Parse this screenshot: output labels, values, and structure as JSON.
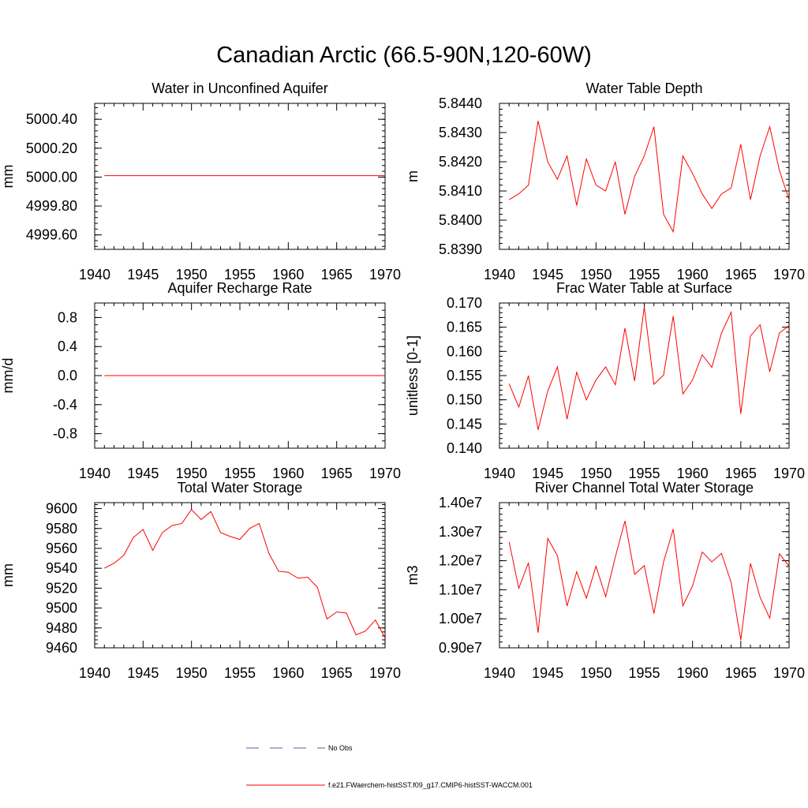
{
  "main_title": "Canadian Arctic (66.5-90N,120-60W)",
  "colors": {
    "model": "#ff0000",
    "obs": "#5a5aa8",
    "axis": "#000000"
  },
  "legend": {
    "obs_label": "No Obs",
    "model_label": "f.e21.FWaerchem-histSST.f09_g17.CMIP6-histSST-WACCM.001"
  },
  "chart_data": [
    {
      "type": "line",
      "title": "Water in Unconfined Aquifer",
      "ylabel": "mm",
      "xlim": [
        1940,
        1970
      ],
      "ylim": [
        4999.5,
        5000.51
      ],
      "xticks": [
        1940,
        1945,
        1950,
        1955,
        1960,
        1965,
        1970
      ],
      "yticks": [
        4999.6,
        4999.8,
        5000.0,
        5000.2,
        5000.4
      ],
      "ytick_labels": [
        "4999.60",
        "4999.80",
        "5000.00",
        "5000.20",
        "5000.40"
      ],
      "ytick_minor": 0.04,
      "series": [
        {
          "x": [
            1941,
            1942,
            1943,
            1944,
            1945,
            1946,
            1947,
            1948,
            1949,
            1950,
            1951,
            1952,
            1953,
            1954,
            1955,
            1956,
            1957,
            1958,
            1959,
            1960,
            1961,
            1962,
            1963,
            1964,
            1965,
            1966,
            1967,
            1968,
            1969,
            1970
          ],
          "y": [
            5000.01,
            5000.01,
            5000.01,
            5000.01,
            5000.01,
            5000.01,
            5000.01,
            5000.01,
            5000.01,
            5000.01,
            5000.01,
            5000.01,
            5000.01,
            5000.01,
            5000.01,
            5000.01,
            5000.01,
            5000.01,
            5000.01,
            5000.01,
            5000.01,
            5000.01,
            5000.01,
            5000.01,
            5000.01,
            5000.01,
            5000.01,
            5000.01,
            5000.01,
            5000.01
          ]
        }
      ]
    },
    {
      "type": "line",
      "title": "Water Table Depth",
      "ylabel": "m",
      "xlim": [
        1940,
        1970
      ],
      "ylim": [
        5.839,
        5.844
      ],
      "xticks": [
        1940,
        1945,
        1950,
        1955,
        1960,
        1965,
        1970
      ],
      "yticks": [
        5.839,
        5.84,
        5.841,
        5.842,
        5.843,
        5.844
      ],
      "ytick_labels": [
        "5.8390",
        "5.8400",
        "5.8410",
        "5.8420",
        "5.8430",
        "5.8440"
      ],
      "ytick_minor": 0.0002,
      "series": [
        {
          "x": [
            1941,
            1942,
            1943,
            1944,
            1945,
            1946,
            1947,
            1948,
            1949,
            1950,
            1951,
            1952,
            1953,
            1954,
            1955,
            1956,
            1957,
            1958,
            1959,
            1960,
            1961,
            1962,
            1963,
            1964,
            1965,
            1966,
            1967,
            1968,
            1969,
            1970
          ],
          "y": [
            5.8407,
            5.8409,
            5.8412,
            5.8434,
            5.842,
            5.8414,
            5.8422,
            5.8405,
            5.8421,
            5.8412,
            5.841,
            5.842,
            5.8402,
            5.8415,
            5.8422,
            5.8432,
            5.8402,
            5.8396,
            5.8422,
            5.8416,
            5.8409,
            5.8404,
            5.8409,
            5.8411,
            5.8426,
            5.8407,
            5.8422,
            5.8432,
            5.8417,
            5.8407
          ]
        }
      ]
    },
    {
      "type": "line",
      "title": "Aquifer Recharge Rate",
      "ylabel": "mm/d",
      "xlim": [
        1940,
        1970
      ],
      "ylim": [
        -1.0,
        1.0
      ],
      "xticks": [
        1940,
        1945,
        1950,
        1955,
        1960,
        1965,
        1970
      ],
      "yticks": [
        -0.8,
        -0.4,
        0.0,
        0.4,
        0.8
      ],
      "ytick_labels": [
        "-0.8",
        "-0.4",
        "0.0",
        "0.4",
        "0.8"
      ],
      "ytick_minor": 0.1,
      "series": [
        {
          "x": [
            1941,
            1942,
            1943,
            1944,
            1945,
            1946,
            1947,
            1948,
            1949,
            1950,
            1951,
            1952,
            1953,
            1954,
            1955,
            1956,
            1957,
            1958,
            1959,
            1960,
            1961,
            1962,
            1963,
            1964,
            1965,
            1966,
            1967,
            1968,
            1969,
            1970
          ],
          "y": [
            0,
            0,
            0,
            0,
            0,
            0,
            0,
            0,
            0,
            0,
            0,
            0,
            0,
            0,
            0,
            0,
            0,
            0,
            0,
            0,
            0,
            0,
            0,
            0,
            0,
            0,
            0,
            0,
            0,
            0
          ]
        }
      ]
    },
    {
      "type": "line",
      "title": "Frac Water Table at Surface",
      "ylabel": "unitless [0-1]",
      "xlim": [
        1940,
        1970
      ],
      "ylim": [
        0.14,
        0.17
      ],
      "xticks": [
        1940,
        1945,
        1950,
        1955,
        1960,
        1965,
        1970
      ],
      "yticks": [
        0.14,
        0.145,
        0.15,
        0.155,
        0.16,
        0.165,
        0.17
      ],
      "ytick_labels": [
        "0.140",
        "0.145",
        "0.150",
        "0.155",
        "0.160",
        "0.165",
        "0.170"
      ],
      "ytick_minor": 0.001,
      "series": [
        {
          "x": [
            1941,
            1942,
            1943,
            1944,
            1945,
            1946,
            1947,
            1948,
            1949,
            1950,
            1951,
            1952,
            1953,
            1954,
            1955,
            1956,
            1957,
            1958,
            1959,
            1960,
            1961,
            1962,
            1963,
            1964,
            1965,
            1966,
            1967,
            1968,
            1969,
            1970
          ],
          "y": [
            0.1533,
            0.1485,
            0.155,
            0.1438,
            0.1518,
            0.1568,
            0.146,
            0.1557,
            0.15,
            0.1541,
            0.1568,
            0.1531,
            0.1648,
            0.1539,
            0.1692,
            0.1532,
            0.1551,
            0.1673,
            0.1512,
            0.1541,
            0.1593,
            0.1567,
            0.1638,
            0.1681,
            0.1471,
            0.1632,
            0.1655,
            0.1558,
            0.1638,
            0.1653
          ]
        }
      ]
    },
    {
      "type": "line",
      "title": "Total Water Storage",
      "ylabel": "mm",
      "xlim": [
        1940,
        1970
      ],
      "ylim": [
        9460,
        9606
      ],
      "xticks": [
        1940,
        1945,
        1950,
        1955,
        1960,
        1965,
        1970
      ],
      "yticks": [
        9460,
        9480,
        9500,
        9520,
        9540,
        9560,
        9580,
        9600
      ],
      "ytick_labels": [
        "9460",
        "9480",
        "9500",
        "9520",
        "9540",
        "9560",
        "9580",
        "9600"
      ],
      "ytick_minor": 4,
      "series": [
        {
          "x": [
            1941,
            1942,
            1943,
            1944,
            1945,
            1946,
            1947,
            1948,
            1949,
            1950,
            1951,
            1952,
            1953,
            1954,
            1955,
            1956,
            1957,
            1958,
            1959,
            1960,
            1961,
            1962,
            1963,
            1964,
            1965,
            1966,
            1967,
            1968,
            1969,
            1970
          ],
          "y": [
            9540,
            9545,
            9553,
            9571,
            9579,
            9558,
            9576,
            9583,
            9585,
            9599,
            9589,
            9597,
            9576,
            9572,
            9569,
            9580,
            9585,
            9555,
            9537,
            9536,
            9530,
            9531,
            9521,
            9489,
            9496,
            9495,
            9473,
            9477,
            9488,
            9470
          ]
        }
      ]
    },
    {
      "type": "line",
      "title": "River Channel Total Water Storage",
      "ylabel": "m3",
      "xlim": [
        1940,
        1970
      ],
      "ylim": [
        9000000,
        14000000
      ],
      "xticks": [
        1940,
        1945,
        1950,
        1955,
        1960,
        1965,
        1970
      ],
      "yticks": [
        9000000,
        10000000,
        11000000,
        12000000,
        13000000,
        14000000
      ],
      "ytick_labels": [
        "0.90e7",
        "1.00e7",
        "1.10e7",
        "1.20e7",
        "1.30e7",
        "1.40e7"
      ],
      "ytick_minor": 200000,
      "series": [
        {
          "x": [
            1941,
            1942,
            1943,
            1944,
            1945,
            1946,
            1947,
            1948,
            1949,
            1950,
            1951,
            1952,
            1953,
            1954,
            1955,
            1956,
            1957,
            1958,
            1959,
            1960,
            1961,
            1962,
            1963,
            1964,
            1965,
            1966,
            1967,
            1968,
            1969,
            1970
          ],
          "y": [
            12650000,
            11050000,
            11930000,
            9520000,
            12770000,
            12170000,
            10440000,
            11620000,
            10710000,
            11810000,
            10760000,
            12130000,
            13370000,
            11530000,
            11830000,
            10180000,
            11960000,
            13090000,
            10450000,
            11130000,
            12300000,
            11960000,
            12250000,
            11250000,
            9270000,
            11910000,
            10740000,
            10020000,
            12240000,
            11810000
          ]
        }
      ]
    }
  ]
}
